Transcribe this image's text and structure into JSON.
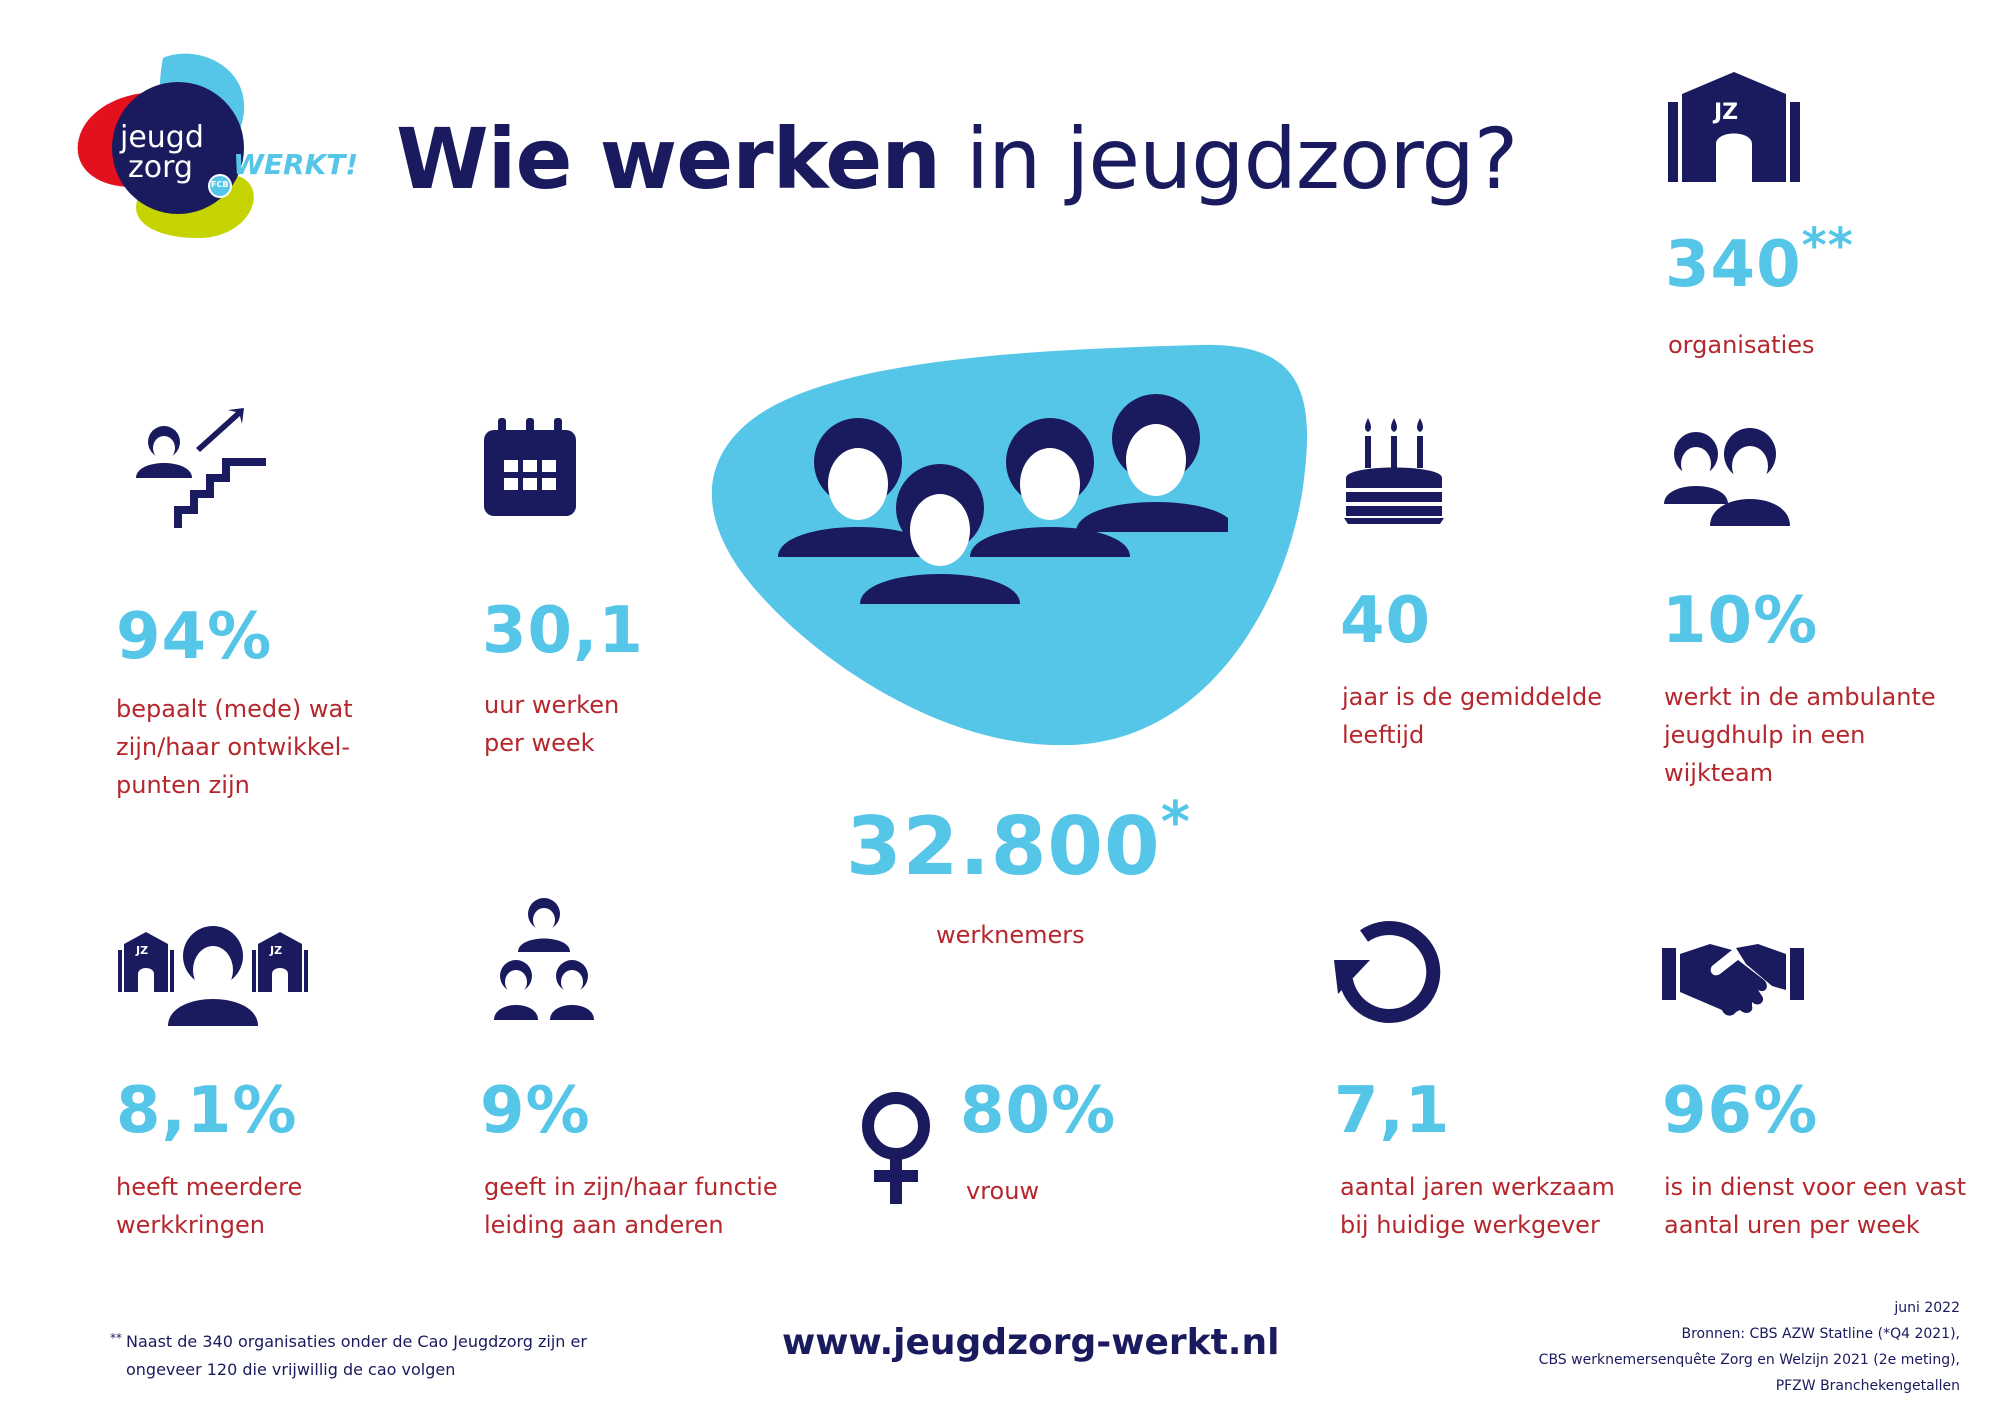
{
  "logo": {
    "line1": "jeugd",
    "line2": "zorg",
    "badge": "FCB",
    "suffix": "WERKT!"
  },
  "title": {
    "bold": "Wie werken",
    "light": "in jeugdzorg?"
  },
  "organisations": {
    "icon_text": "JZ",
    "value": "340",
    "mark": "**",
    "label": "organisaties"
  },
  "employees": {
    "value": "32.800",
    "mark": "*",
    "label": "werknemers"
  },
  "stats": [
    {
      "id": "career",
      "icon": "staircase-person-icon",
      "value": "94%",
      "lines": [
        "bepaalt (mede) wat",
        "zijn/haar ontwikkel-",
        "punten zijn"
      ]
    },
    {
      "id": "hours",
      "icon": "calendar-icon",
      "value": "30,1",
      "lines": [
        "uur werken",
        "per week"
      ]
    },
    {
      "id": "age",
      "icon": "birthday-cake-icon",
      "value": "40",
      "lines": [
        "jaar is de gemiddelde",
        "leeftijd"
      ]
    },
    {
      "id": "ambulant",
      "icon": "two-people-icon",
      "value": "10%",
      "lines": [
        "werkt in de ambulante",
        "jeugdhulp in een",
        "wijkteam"
      ]
    },
    {
      "id": "multiple",
      "icon": "person-between-buildings-icon",
      "icon_text": "JZ",
      "value": "8,1%",
      "lines": [
        "heeft meerdere",
        "werkkringen"
      ]
    },
    {
      "id": "lead",
      "icon": "hierarchy-people-icon",
      "value": "9%",
      "lines": [
        "geeft in zijn/haar functie",
        "leiding aan anderen"
      ]
    },
    {
      "id": "female",
      "icon": "female-symbol-icon",
      "value": "80%",
      "lines": [
        "vrouw"
      ]
    },
    {
      "id": "tenure",
      "icon": "refresh-arrow-icon",
      "value": "7,1",
      "lines": [
        "aantal jaren werkzaam",
        "bij huidige werkgever"
      ]
    },
    {
      "id": "fixed",
      "icon": "handshake-icon",
      "value": "96%",
      "lines": [
        "is in dienst voor een vast",
        "aantal uren per week"
      ]
    }
  ],
  "footnote": {
    "mark": "**",
    "line1": "Naast de 340 organisaties onder de Cao Jeugdzorg zijn er",
    "line2": "ongeveer 120 die vrijwillig de cao volgen"
  },
  "url": "www.jeugdzorg-werkt.nl",
  "sources": {
    "date": "juni 2022",
    "line1": "Bronnen: CBS AZW Statline (*Q4 2021),",
    "line2": "CBS werknemersenquête Zorg en Welzijn 2021 (2e meting),",
    "line3": "PFZW Branchekengetallen"
  },
  "colors": {
    "navy": "#1a1a5e",
    "cyan": "#55c5e8",
    "red": "#b5272d",
    "logo_red": "#e3101e",
    "logo_lime": "#c5d400"
  }
}
